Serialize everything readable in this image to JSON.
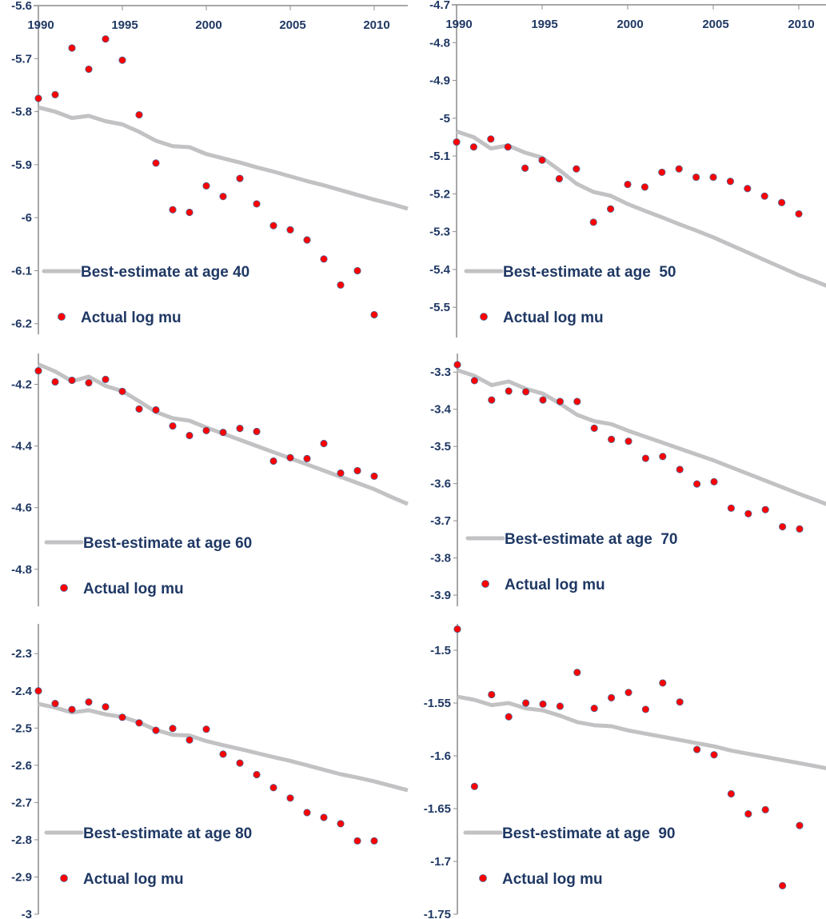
{
  "colors": {
    "actual_dot": "#ff0000",
    "dot_outline": "#4a6a9c",
    "best_estimate_line": "#c2c2c4",
    "axis": "#8c8c8c",
    "text": "#1f3864"
  },
  "chart_data": [
    {
      "type": "scatter+line",
      "panel": "top-left",
      "title": "",
      "xlabel": "",
      "ylabel": "",
      "x_axis_position": "top",
      "xlim": [
        1990,
        2012
      ],
      "ylim": [
        -6.22,
        -5.6
      ],
      "x_ticks": [
        1990,
        1995,
        2000,
        2005,
        2010
      ],
      "y_ticks": [
        -5.6,
        -5.7,
        -5.8,
        -5.9,
        -6,
        -6.1,
        -6.2
      ],
      "y_tick_labels": [
        "-5.6",
        "-5.7",
        "-5.8",
        "-5.9",
        "-6",
        "-6.1",
        "-6.2"
      ],
      "legend": {
        "position": "bottom-left",
        "entries": [
          "Best-estimate at age 40",
          "Actual log mu"
        ]
      },
      "series": [
        {
          "name": "Best-estimate at age 40",
          "kind": "line",
          "x": [
            1990,
            1991,
            1992,
            1993,
            1994,
            1995,
            1996,
            1997,
            1998,
            1999,
            2000,
            2001,
            2002,
            2003,
            2004,
            2005,
            2006,
            2007,
            2008,
            2009,
            2010,
            2011,
            2012
          ],
          "values": [
            -5.792,
            -5.8,
            -5.812,
            -5.808,
            -5.818,
            -5.824,
            -5.838,
            -5.855,
            -5.865,
            -5.867,
            -5.88,
            -5.888,
            -5.896,
            -5.905,
            -5.913,
            -5.922,
            -5.931,
            -5.939,
            -5.948,
            -5.957,
            -5.966,
            -5.974,
            -5.983
          ]
        },
        {
          "name": "Actual log mu",
          "kind": "scatter",
          "x": [
            1990,
            1991,
            1992,
            1993,
            1994,
            1995,
            1996,
            1997,
            1998,
            1999,
            2000,
            2001,
            2002,
            2003,
            2004,
            2005,
            2006,
            2007,
            2008,
            2009,
            2010
          ],
          "values": [
            -5.775,
            -5.768,
            -5.68,
            -5.72,
            -5.663,
            -5.703,
            -5.806,
            -5.897,
            -5.985,
            -5.99,
            -5.94,
            -5.96,
            -5.926,
            -5.974,
            -6.015,
            -6.023,
            -6.042,
            -6.078,
            -6.127,
            -6.1,
            -6.183
          ]
        }
      ]
    },
    {
      "type": "scatter+line",
      "panel": "top-right",
      "title": "",
      "xlabel": "",
      "ylabel": "",
      "x_axis_position": "top",
      "xlim": [
        1990,
        2012
      ],
      "ylim": [
        -5.58,
        -4.7
      ],
      "x_ticks": [
        1990,
        1995,
        2000,
        2005,
        2010
      ],
      "y_ticks": [
        -4.7,
        -4.8,
        -4.9,
        -5,
        -5.1,
        -5.2,
        -5.3,
        -5.4,
        -5.5
      ],
      "y_tick_labels": [
        "-4.7",
        "-4.8",
        "-4.9",
        "-5",
        "-5.1",
        "-5.2",
        "-5.3",
        "-5.4",
        "-5.5"
      ],
      "legend": {
        "position": "bottom-left",
        "entries": [
          "Best-estimate at age  50",
          "Actual log mu"
        ]
      },
      "series": [
        {
          "name": "Best-estimate at age  50",
          "kind": "line",
          "x": [
            1990,
            1991,
            1992,
            1993,
            1994,
            1995,
            1996,
            1997,
            1998,
            1999,
            2000,
            2001,
            2002,
            2003,
            2004,
            2005,
            2006,
            2007,
            2008,
            2009,
            2010,
            2011,
            2012
          ],
          "values": [
            -5.035,
            -5.05,
            -5.08,
            -5.072,
            -5.091,
            -5.104,
            -5.137,
            -5.173,
            -5.195,
            -5.205,
            -5.227,
            -5.245,
            -5.262,
            -5.28,
            -5.297,
            -5.315,
            -5.335,
            -5.355,
            -5.375,
            -5.395,
            -5.415,
            -5.432,
            -5.45
          ]
        },
        {
          "name": "Actual log mu",
          "kind": "scatter",
          "x": [
            1990,
            1991,
            1992,
            1993,
            1994,
            1995,
            1996,
            1997,
            1998,
            1999,
            2000,
            2001,
            2002,
            2003,
            2004,
            2005,
            2006,
            2007,
            2008,
            2009,
            2010
          ],
          "values": [
            -5.063,
            -5.076,
            -5.055,
            -5.076,
            -5.132,
            -5.111,
            -5.16,
            -5.134,
            -5.275,
            -5.24,
            -5.175,
            -5.182,
            -5.143,
            -5.134,
            -5.156,
            -5.156,
            -5.167,
            -5.186,
            -5.206,
            -5.223,
            -5.253
          ]
        }
      ]
    },
    {
      "type": "scatter+line",
      "panel": "middle-left",
      "title": "",
      "xlabel": "",
      "ylabel": "",
      "x_axis_position": "none",
      "xlim": [
        1990,
        2012
      ],
      "ylim": [
        -4.92,
        -4.1
      ],
      "x_ticks": [],
      "y_ticks": [
        -4.2,
        -4.4,
        -4.6,
        -4.8
      ],
      "y_tick_labels": [
        "-4.2",
        "-4.4",
        "-4.6",
        "-4.8"
      ],
      "legend": {
        "position": "bottom-left",
        "entries": [
          "Best-estimate at age 60",
          "Actual log mu"
        ]
      },
      "series": [
        {
          "name": "Best-estimate at age 60",
          "kind": "line",
          "x": [
            1990,
            1991,
            1992,
            1993,
            1994,
            1995,
            1996,
            1997,
            1998,
            1999,
            2000,
            2001,
            2002,
            2003,
            2004,
            2005,
            2006,
            2007,
            2008,
            2009,
            2010,
            2011,
            2012
          ],
          "values": [
            -4.135,
            -4.158,
            -4.19,
            -4.175,
            -4.205,
            -4.222,
            -4.255,
            -4.29,
            -4.31,
            -4.318,
            -4.34,
            -4.36,
            -4.38,
            -4.4,
            -4.42,
            -4.44,
            -4.46,
            -4.48,
            -4.5,
            -4.52,
            -4.54,
            -4.565,
            -4.588
          ]
        },
        {
          "name": "Actual log mu",
          "kind": "scatter",
          "x": [
            1990,
            1991,
            1992,
            1993,
            1994,
            1995,
            1996,
            1997,
            1998,
            1999,
            2000,
            2001,
            2002,
            2003,
            2004,
            2005,
            2006,
            2007,
            2008,
            2009,
            2010
          ],
          "values": [
            -4.156,
            -4.192,
            -4.187,
            -4.195,
            -4.184,
            -4.223,
            -4.28,
            -4.283,
            -4.335,
            -4.366,
            -4.35,
            -4.356,
            -4.343,
            -4.353,
            -4.449,
            -4.438,
            -4.441,
            -4.392,
            -4.488,
            -4.48,
            -4.498
          ]
        }
      ]
    },
    {
      "type": "scatter+line",
      "panel": "middle-right",
      "title": "",
      "xlabel": "",
      "ylabel": "",
      "x_axis_position": "none",
      "xlim": [
        1990,
        2012
      ],
      "ylim": [
        -3.93,
        -3.25
      ],
      "x_ticks": [],
      "y_ticks": [
        -3.3,
        -3.4,
        -3.5,
        -3.6,
        -3.7,
        -3.8,
        -3.9
      ],
      "y_tick_labels": [
        "-3.3",
        "-3.4",
        "-3.5",
        "-3.6",
        "-3.7",
        "-3.8",
        "-3.9"
      ],
      "legend": {
        "position": "bottom-left",
        "entries": [
          "Best-estimate at age  70",
          "Actual log mu"
        ]
      },
      "series": [
        {
          "name": "Best-estimate at age  70",
          "kind": "line",
          "x": [
            1990,
            1991,
            1992,
            1993,
            1994,
            1995,
            1996,
            1997,
            1998,
            1999,
            2000,
            2001,
            2002,
            2003,
            2004,
            2005,
            2006,
            2007,
            2008,
            2009,
            2010,
            2011,
            2012
          ],
          "values": [
            -3.295,
            -3.31,
            -3.335,
            -3.325,
            -3.345,
            -3.358,
            -3.385,
            -3.415,
            -3.432,
            -3.44,
            -3.458,
            -3.474,
            -3.49,
            -3.506,
            -3.522,
            -3.538,
            -3.556,
            -3.574,
            -3.592,
            -3.61,
            -3.628,
            -3.645,
            -3.663
          ]
        },
        {
          "name": "Actual log mu",
          "kind": "scatter",
          "x": [
            1990,
            1991,
            1992,
            1993,
            1994,
            1995,
            1996,
            1997,
            1998,
            1999,
            2000,
            2001,
            2002,
            2003,
            2004,
            2005,
            2006,
            2007,
            2008,
            2009,
            2010
          ],
          "values": [
            -3.28,
            -3.323,
            -3.375,
            -3.351,
            -3.353,
            -3.375,
            -3.379,
            -3.379,
            -3.451,
            -3.481,
            -3.486,
            -3.532,
            -3.527,
            -3.562,
            -3.601,
            -3.595,
            -3.666,
            -3.681,
            -3.67,
            -3.716,
            -3.722
          ]
        }
      ]
    },
    {
      "type": "scatter+line",
      "panel": "bottom-left",
      "title": "",
      "xlabel": "",
      "ylabel": "",
      "x_axis_position": "none",
      "xlim": [
        1990,
        2012
      ],
      "ylim": [
        -3,
        -2.22
      ],
      "x_ticks": [],
      "y_ticks": [
        -2.3,
        -2.4,
        -2.5,
        -2.6,
        -2.7,
        -2.8,
        -2.9,
        -3
      ],
      "y_tick_labels": [
        "-2.3",
        "-2.4",
        "-2.5",
        "-2.6",
        "-2.7",
        "-2.8",
        "-2.9",
        "-3"
      ],
      "legend": {
        "position": "bottom-left",
        "entries": [
          "Best-estimate at age 80",
          "Actual log mu"
        ]
      },
      "series": [
        {
          "name": "Best-estimate at age 80",
          "kind": "line",
          "x": [
            1990,
            1991,
            1992,
            1993,
            1994,
            1995,
            1996,
            1997,
            1998,
            1999,
            2000,
            2001,
            2002,
            2003,
            2004,
            2005,
            2006,
            2007,
            2008,
            2009,
            2010,
            2011,
            2012
          ],
          "values": [
            -2.435,
            -2.445,
            -2.458,
            -2.452,
            -2.463,
            -2.47,
            -2.485,
            -2.505,
            -2.518,
            -2.52,
            -2.535,
            -2.546,
            -2.556,
            -2.567,
            -2.578,
            -2.588,
            -2.6,
            -2.612,
            -2.624,
            -2.633,
            -2.643,
            -2.655,
            -2.667
          ]
        },
        {
          "name": "Actual log mu",
          "kind": "scatter",
          "x": [
            1990,
            1991,
            1992,
            1993,
            1994,
            1995,
            1996,
            1997,
            1998,
            1999,
            2000,
            2001,
            2002,
            2003,
            2004,
            2005,
            2006,
            2007,
            2008,
            2009,
            2010
          ],
          "values": [
            -2.4,
            -2.434,
            -2.45,
            -2.43,
            -2.443,
            -2.471,
            -2.486,
            -2.506,
            -2.501,
            -2.532,
            -2.503,
            -2.57,
            -2.594,
            -2.625,
            -2.66,
            -2.688,
            -2.727,
            -2.74,
            -2.757,
            -2.803,
            -2.803
          ]
        }
      ]
    },
    {
      "type": "scatter+line",
      "panel": "bottom-right",
      "title": "",
      "xlabel": "",
      "ylabel": "",
      "x_axis_position": "none",
      "xlim": [
        1990,
        2012
      ],
      "ylim": [
        -1.75,
        -1.475
      ],
      "x_ticks": [],
      "y_ticks": [
        -1.5,
        -1.55,
        -1.6,
        -1.65,
        -1.7,
        -1.75
      ],
      "y_tick_labels": [
        "-1.5",
        "-1.55",
        "-1.6",
        "-1.65",
        "-1.7",
        "-1.75"
      ],
      "legend": {
        "position": "bottom-left",
        "entries": [
          "Best-estimate at age  90",
          "Actual log mu"
        ]
      },
      "series": [
        {
          "name": "Best-estimate at age  90",
          "kind": "line",
          "x": [
            1990,
            1991,
            1992,
            1993,
            1994,
            1995,
            1996,
            1997,
            1998,
            1999,
            2000,
            2001,
            2002,
            2003,
            2004,
            2005,
            2006,
            2007,
            2008,
            2009,
            2010,
            2011,
            2012
          ],
          "values": [
            -1.544,
            -1.547,
            -1.552,
            -1.55,
            -1.555,
            -1.557,
            -1.562,
            -1.568,
            -1.571,
            -1.572,
            -1.576,
            -1.579,
            -1.582,
            -1.585,
            -1.588,
            -1.591,
            -1.595,
            -1.598,
            -1.601,
            -1.604,
            -1.607,
            -1.61,
            -1.613
          ]
        },
        {
          "name": "Actual log mu",
          "kind": "scatter",
          "x": [
            1990,
            1991,
            1992,
            1993,
            1994,
            1995,
            1996,
            1997,
            1998,
            1999,
            2000,
            2001,
            2002,
            2003,
            2004,
            2005,
            2006,
            2007,
            2008,
            2009,
            2010
          ],
          "values": [
            -1.48,
            -1.629,
            -1.542,
            -1.563,
            -1.55,
            -1.551,
            -1.553,
            -1.521,
            -1.555,
            -1.545,
            -1.54,
            -1.556,
            -1.531,
            -1.549,
            -1.594,
            -1.599,
            -1.636,
            -1.655,
            -1.651,
            -1.723,
            -1.666
          ]
        }
      ]
    }
  ]
}
